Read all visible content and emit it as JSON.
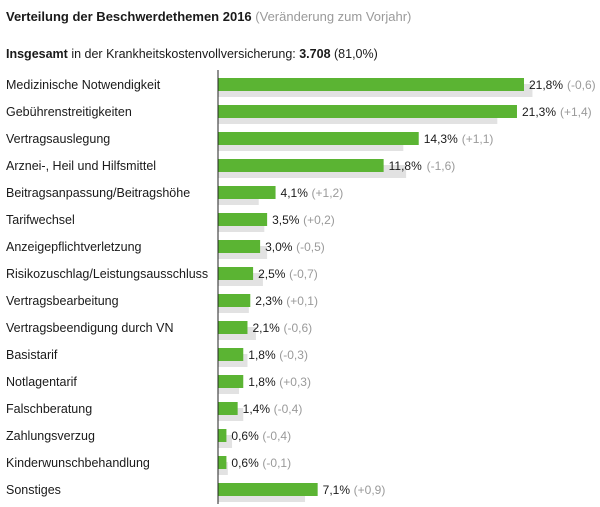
{
  "header": {
    "title": "Verteilung der Beschwerdethemen 2016",
    "subtitle": "(Veränderung zum Vorjahr)",
    "total_lead": "Insgesamt",
    "total_text": "in der Krankheitskostenvollversicherung:",
    "total_value": "3.708",
    "total_share": "(81,0%)"
  },
  "colors": {
    "current": "#5bb433",
    "previous": "#e2e2e2",
    "axis": "#222222",
    "change_text": "#9a9a9a"
  },
  "chart_data": {
    "type": "bar",
    "orientation": "horizontal",
    "categories": [
      "Medizinische Notwendigkeit",
      "Gebührenstreitigkeiten",
      "Vertragsauslegung",
      "Arznei-, Heil und Hilfsmittel",
      "Beitragsanpassung/Beitragshöhe",
      "Tarifwechsel",
      "Anzeigepflichtverletzung",
      "Risikozuschlag/Leistungsausschluss",
      "Vertragsbearbeitung",
      "Vertragsbeendigung durch VN",
      "Basistarif",
      "Notlagentarif",
      "Falschberatung",
      "Zahlungsverzug",
      "Kinderwunschbehandlung",
      "Sonstiges"
    ],
    "series": [
      {
        "values": [
          21.8,
          21.3,
          14.3,
          11.8,
          4.1,
          3.5,
          3.0,
          2.5,
          2.3,
          2.1,
          1.8,
          1.8,
          1.4,
          0.6,
          0.6,
          7.1
        ]
      },
      {
        "values": [
          22.4,
          19.9,
          13.2,
          13.4,
          2.9,
          3.3,
          3.5,
          3.2,
          2.2,
          2.7,
          2.1,
          1.5,
          1.8,
          1.0,
          0.7,
          6.2
        ]
      }
    ],
    "value_labels": [
      "21,8%",
      "21,3%",
      "14,3%",
      "11,8%",
      "4,1%",
      "3,5%",
      "3,0%",
      "2,5%",
      "2,3%",
      "2,1%",
      "1,8%",
      "1,8%",
      "1,4%",
      "0,6%",
      "0,6%",
      "7,1%"
    ],
    "change_labels": [
      "(-0,6)",
      "(+1,4)",
      "(+1,1)",
      "(-1,6)",
      "(+1,2)",
      "(+0,2)",
      "(-0,5)",
      "(-0,7)",
      "(+0,1)",
      "(-0,6)",
      "(-0,3)",
      "(+0,3)",
      "(-0,4)",
      "(-0,4)",
      "(-0,1)",
      "(+0,9)"
    ],
    "xlim": [
      0,
      22.6
    ],
    "grid": false,
    "legend": "none"
  }
}
